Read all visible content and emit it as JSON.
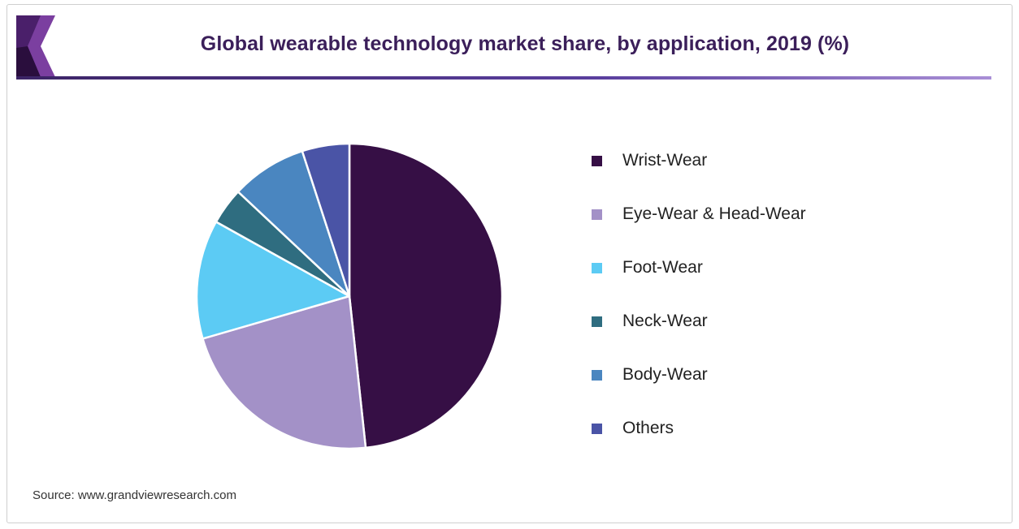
{
  "chart_data": {
    "type": "pie",
    "title": "Global wearable technology market share, by application, 2019 (%)",
    "slices": [
      {
        "label": "Wrist-Wear",
        "value": 48.3,
        "color": "#360f45"
      },
      {
        "label": "Eye-Wear & Head-Wear",
        "value": 22.2,
        "color": "#a391c7"
      },
      {
        "label": "Foot-Wear",
        "value": 12.6,
        "color": "#5ccbf4"
      },
      {
        "label": "Neck-Wear",
        "value": 3.9,
        "color": "#2f6d80"
      },
      {
        "label": "Body-Wear",
        "value": 8.0,
        "color": "#4a86c0"
      },
      {
        "label": "Others",
        "value": 5.0,
        "color": "#4a54a6"
      }
    ],
    "legend_position": "right"
  },
  "source": "Source: www.grandviewresearch.com"
}
